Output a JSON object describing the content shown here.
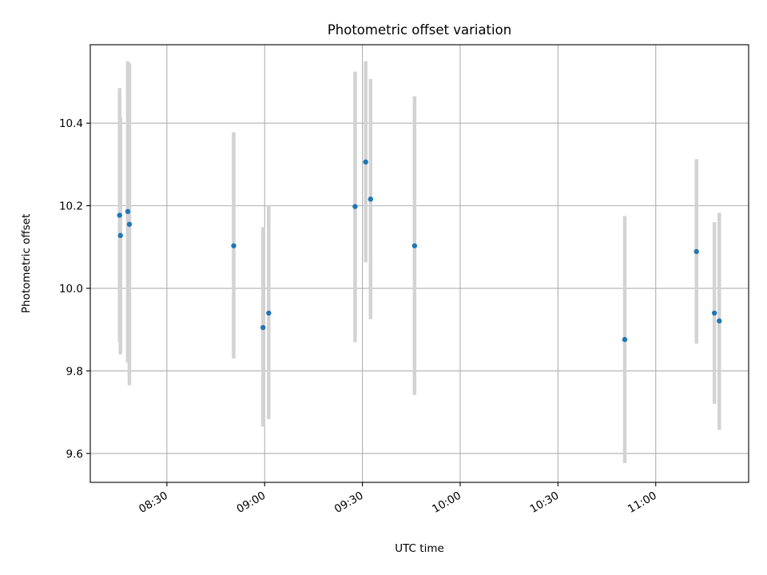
{
  "chart_data": {
    "type": "scatter",
    "title": "Photometric offset variation",
    "xlabel": "UTC time",
    "ylabel": "Photometric offset",
    "xlim": [
      "08:06:30",
      "11:28:30"
    ],
    "ylim": [
      9.53,
      10.59
    ],
    "x_ticks": [
      "08:30",
      "09:00",
      "09:30",
      "10:00",
      "10:30",
      "11:00"
    ],
    "y_ticks": [
      "9.6",
      "9.8",
      "10.0",
      "10.2",
      "10.4"
    ],
    "grid": true,
    "colors": {
      "point": "#1f77b4",
      "errorbar": "#d3d3d3"
    },
    "points": [
      {
        "x": "08:15:30",
        "y": 10.177,
        "yerr_low": 9.87,
        "yerr_high": 10.485
      },
      {
        "x": "08:15:45",
        "y": 10.128,
        "yerr_low": 9.84,
        "yerr_high": 10.415
      },
      {
        "x": "08:18:00",
        "y": 10.186,
        "yerr_low": 9.82,
        "yerr_high": 10.55
      },
      {
        "x": "08:18:30",
        "y": 10.155,
        "yerr_low": 9.765,
        "yerr_high": 10.545
      },
      {
        "x": "08:50:30",
        "y": 10.103,
        "yerr_low": 9.83,
        "yerr_high": 10.378
      },
      {
        "x": "08:59:30",
        "y": 9.905,
        "yerr_low": 9.665,
        "yerr_high": 10.148
      },
      {
        "x": "09:01:15",
        "y": 9.94,
        "yerr_low": 9.683,
        "yerr_high": 10.2
      },
      {
        "x": "09:27:45",
        "y": 10.198,
        "yerr_low": 9.87,
        "yerr_high": 10.525
      },
      {
        "x": "09:31:00",
        "y": 10.306,
        "yerr_low": 10.063,
        "yerr_high": 10.55
      },
      {
        "x": "09:32:30",
        "y": 10.216,
        "yerr_low": 9.925,
        "yerr_high": 10.507
      },
      {
        "x": "09:46:00",
        "y": 10.103,
        "yerr_low": 9.742,
        "yerr_high": 10.465
      },
      {
        "x": "10:50:30",
        "y": 9.876,
        "yerr_low": 9.577,
        "yerr_high": 10.175
      },
      {
        "x": "11:12:30",
        "y": 10.089,
        "yerr_low": 9.866,
        "yerr_high": 10.313
      },
      {
        "x": "11:18:00",
        "y": 9.94,
        "yerr_low": 9.72,
        "yerr_high": 10.16
      },
      {
        "x": "11:19:30",
        "y": 9.921,
        "yerr_low": 9.657,
        "yerr_high": 10.183
      }
    ]
  }
}
